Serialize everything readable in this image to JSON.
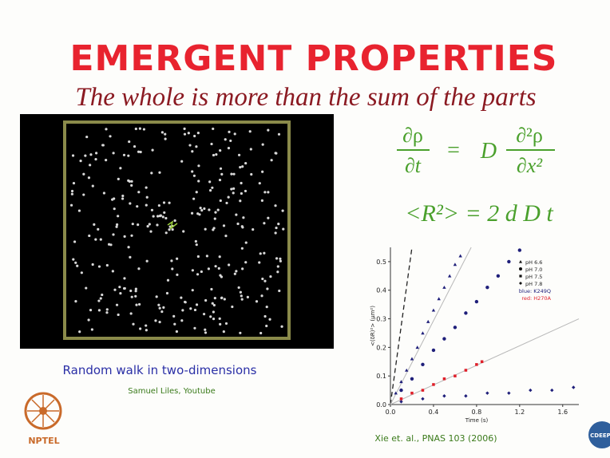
{
  "slide": {
    "title": "EMERGENT PROPERTIES",
    "subtitle": "The whole is more than the sum of the parts",
    "simulation": {
      "caption": "Random walk in two-dimensions",
      "credit": "Samuel Liles, Youtube"
    },
    "equation_1": {
      "numerator_left": "∂ρ",
      "denominator_left": "∂t",
      "equals": "=",
      "coefficient": "D",
      "numerator_right": "∂²ρ",
      "denominator_right": "∂x²"
    },
    "equation_2": "<R²> = 2 d D t",
    "citation": "Xie et. al., PNAS 103 (2006)",
    "logo_left": "NPTEL",
    "logo_right": "CDEEP"
  },
  "chart_data": {
    "type": "scatter",
    "x_label": "Time (s)",
    "y_label": "<(δR)²> (μm²)",
    "xlim": [
      0,
      1.75
    ],
    "ylim": [
      0,
      0.55
    ],
    "xticks": [
      {
        "value": 0,
        "label": "0.0"
      },
      0.4,
      0.8,
      1.2,
      1.6
    ],
    "yticks": [
      {
        "value": 0,
        "label": "0.0"
      },
      0.1,
      0.2,
      0.3,
      0.4,
      0.5
    ],
    "series": [
      {
        "name": "pH 6.6",
        "color": "#1f1f7a",
        "marker": "triangle",
        "x": [
          0.05,
          0.1,
          0.15,
          0.2,
          0.25,
          0.3,
          0.35,
          0.4,
          0.45,
          0.5,
          0.55,
          0.6,
          0.65
        ],
        "values": [
          0.04,
          0.08,
          0.12,
          0.16,
          0.2,
          0.25,
          0.29,
          0.33,
          0.37,
          0.41,
          0.45,
          0.49,
          0.52
        ]
      },
      {
        "name": "pH 7.0",
        "color": "#1f1f7a",
        "marker": "circle",
        "x": [
          0.1,
          0.2,
          0.3,
          0.4,
          0.5,
          0.6,
          0.7,
          0.8,
          0.9,
          1.0,
          1.1,
          1.2
        ],
        "values": [
          0.05,
          0.09,
          0.14,
          0.19,
          0.23,
          0.27,
          0.32,
          0.36,
          0.41,
          0.45,
          0.5,
          0.54
        ]
      },
      {
        "name": "pH 7.5",
        "color": "#e0202a",
        "marker": "square",
        "x": [
          0.1,
          0.2,
          0.3,
          0.4,
          0.5,
          0.6,
          0.7,
          0.8,
          0.85
        ],
        "values": [
          0.02,
          0.04,
          0.05,
          0.07,
          0.09,
          0.1,
          0.12,
          0.14,
          0.15
        ]
      },
      {
        "name": "pH 7.8",
        "color": "#1f1f7a",
        "marker": "diamond",
        "x": [
          0.1,
          0.3,
          0.5,
          0.7,
          0.9,
          1.1,
          1.3,
          1.5,
          1.7
        ],
        "values": [
          0.01,
          0.02,
          0.03,
          0.03,
          0.04,
          0.04,
          0.05,
          0.05,
          0.06
        ]
      }
    ],
    "notes": [
      {
        "text": "blue: K249Q",
        "color": "#1f1f7a"
      },
      {
        "text": "red: H270A",
        "color": "#e0202a"
      }
    ],
    "lines": [
      {
        "style": "dashed",
        "x": [
          0,
          0.2
        ],
        "values": [
          0,
          0.55
        ]
      },
      {
        "style": "solid",
        "x": [
          0,
          0.75
        ],
        "values": [
          0,
          0.55
        ]
      },
      {
        "style": "solid",
        "x": [
          0,
          1.75
        ],
        "values": [
          0,
          0.3
        ]
      }
    ]
  }
}
